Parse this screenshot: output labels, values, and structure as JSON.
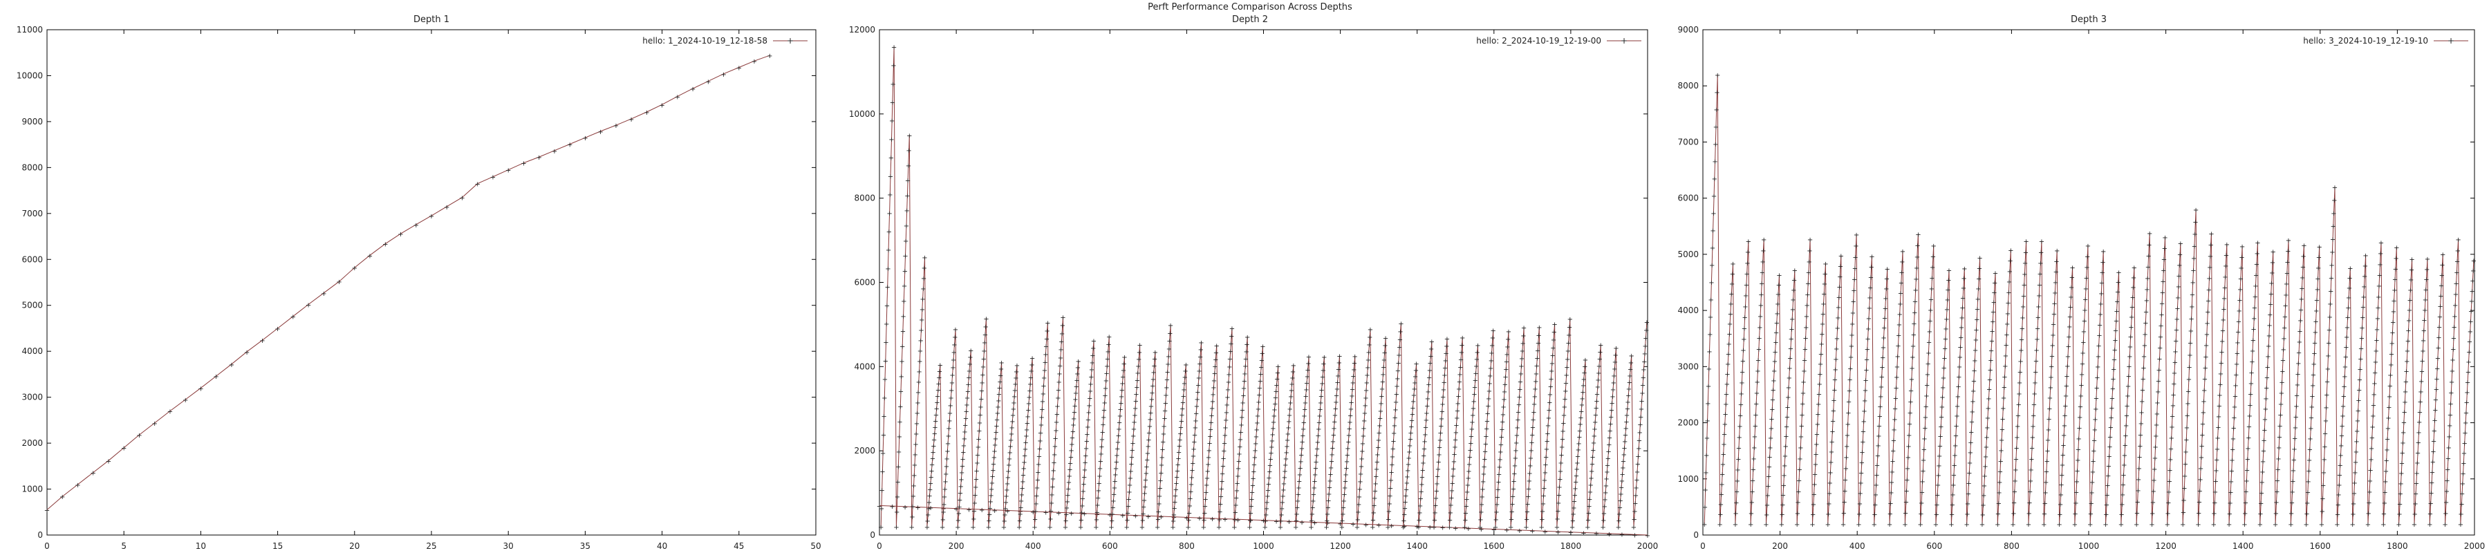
{
  "figure": {
    "title": "Perft Performance Comparison Across Depths",
    "line_color": "#8a3a3a",
    "marker_color": "#222222",
    "series_color": "#7a2f2f"
  },
  "chart_data": [
    {
      "type": "line",
      "title": "Depth 1",
      "legend": "hello: 1_2024-10-19_12-18-58",
      "legend_position": "top-right",
      "grid": false,
      "xlim": [
        0,
        50
      ],
      "ylim": [
        0,
        11000
      ],
      "xticks": [
        0,
        5,
        10,
        15,
        20,
        25,
        30,
        35,
        40,
        45,
        50
      ],
      "yticks": [
        0,
        1000,
        2000,
        3000,
        4000,
        5000,
        6000,
        7000,
        8000,
        9000,
        10000,
        11000
      ],
      "x": [
        0,
        1,
        2,
        3,
        4,
        5,
        6,
        7,
        8,
        9,
        10,
        11,
        12,
        13,
        14,
        15,
        16,
        17,
        18,
        19,
        20,
        21,
        22,
        23,
        24,
        25,
        26,
        27,
        28,
        29,
        30,
        31,
        32,
        33,
        34,
        35,
        36,
        37,
        38,
        39,
        40,
        41,
        42,
        43,
        44,
        45,
        46,
        47
      ],
      "y": [
        550,
        840,
        1100,
        1360,
        1620,
        1900,
        2180,
        2440,
        2700,
        2950,
        3200,
        3460,
        3720,
        3990,
        4240,
        4500,
        4760,
        5020,
        5270,
        5520,
        5820,
        6090,
        6340,
        6560,
        6760,
        6950,
        7150,
        7350,
        7650,
        7800,
        7950,
        8100,
        8230,
        8370,
        8510,
        8650,
        8790,
        8920,
        9060,
        9210,
        9370,
        9550,
        9720,
        9880,
        10040,
        10180,
        10320,
        10440
      ]
    },
    {
      "type": "line",
      "title": "Depth 2",
      "legend": "hello: 2_2024-10-19_12-19-00",
      "legend_position": "top-right",
      "grid": false,
      "xlim": [
        0,
        2000
      ],
      "ylim": [
        0,
        12000
      ],
      "xticks": [
        0,
        200,
        400,
        600,
        800,
        1000,
        1200,
        1400,
        1600,
        1800,
        2000
      ],
      "yticks": [
        0,
        2000,
        4000,
        6000,
        8000,
        10000,
        12000
      ],
      "pattern": "repeated sawtooth ramps of period about 40, each climbing from about 200 to a peak, plus a slowly declining baseline from about 700 at x=0 to about 0 at x=2000",
      "cycle_period": 40,
      "cycle_start_value": 200,
      "early_peaks": [
        {
          "x": 40,
          "y": 11600
        },
        {
          "x": 80,
          "y": 9500
        },
        {
          "x": 120,
          "y": 6600
        }
      ],
      "typical_peak_range": [
        4000,
        5200
      ],
      "baseline": {
        "x": [
          0,
          2000
        ],
        "y": [
          700,
          0
        ]
      }
    },
    {
      "type": "line",
      "title": "Depth 3",
      "legend": "hello: 3_2024-10-19_12-19-10",
      "legend_position": "top-right",
      "grid": false,
      "xlim": [
        0,
        2000
      ],
      "ylim": [
        0,
        9000
      ],
      "xticks": [
        0,
        200,
        400,
        600,
        800,
        1000,
        1200,
        1400,
        1600,
        1800,
        2000
      ],
      "yticks": [
        0,
        1000,
        2000,
        3000,
        4000,
        5000,
        6000,
        7000,
        8000,
        9000
      ],
      "pattern": "repeated sawtooth ramps of period about 40, each climbing from about 200 to a peak near 5000",
      "cycle_period": 40,
      "cycle_start_value": 200,
      "early_peaks": [
        {
          "x": 50,
          "y": 8200
        }
      ],
      "typical_peak_range": [
        4600,
        5400
      ],
      "notable_peaks": [
        {
          "x": 1280,
          "y": 5800
        },
        {
          "x": 1640,
          "y": 6200
        }
      ]
    }
  ]
}
